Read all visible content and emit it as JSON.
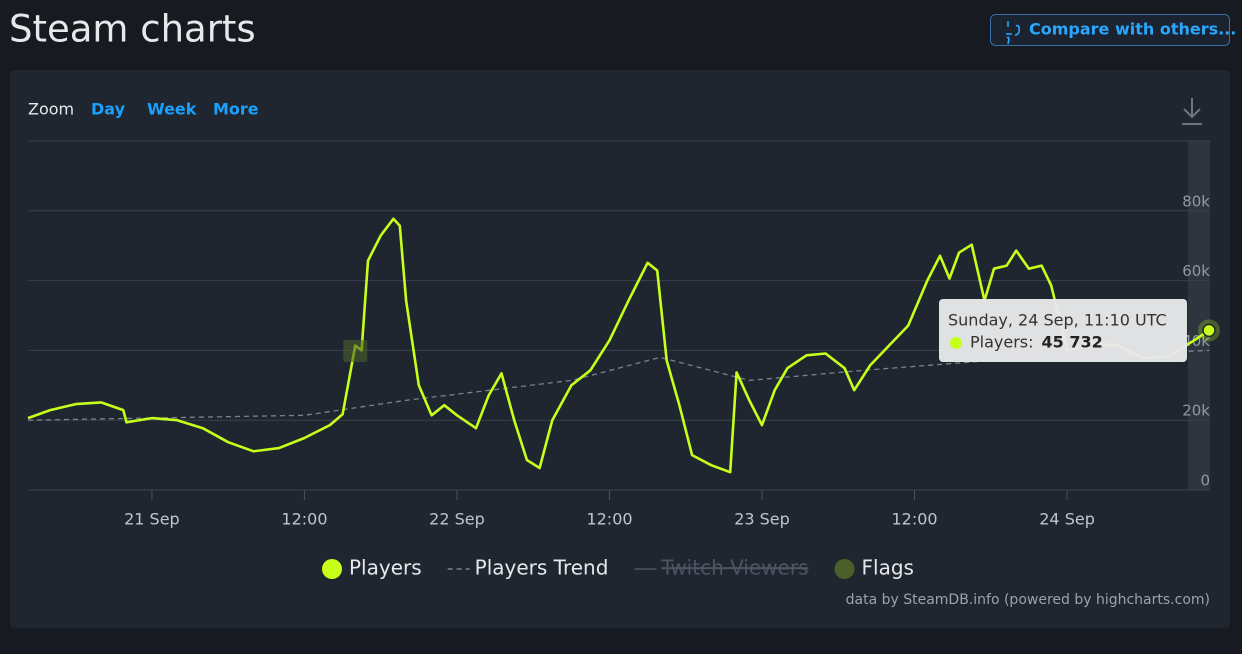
{
  "header": {
    "title": "Steam charts",
    "compare_button": "Compare with others..."
  },
  "zoom": {
    "label": "Zoom",
    "options": [
      "Day",
      "Week",
      "More"
    ]
  },
  "chart_data": {
    "type": "line",
    "xlim": [
      "20 Sep 14:15",
      "24 Sep 11:10"
    ],
    "xticks": [
      {
        "value": "21 Sep 00:00",
        "label": "21 Sep"
      },
      {
        "value": "21 Sep 12:00",
        "label": "12:00"
      },
      {
        "value": "22 Sep 00:00",
        "label": "22 Sep"
      },
      {
        "value": "22 Sep 12:00",
        "label": "12:00"
      },
      {
        "value": "23 Sep 00:00",
        "label": "23 Sep"
      },
      {
        "value": "23 Sep 12:00",
        "label": "12:00"
      },
      {
        "value": "24 Sep 00:00",
        "label": "24 Sep"
      }
    ],
    "ylim": [
      0,
      100000
    ],
    "yticks": [
      0,
      {
        "value": 20000,
        "label": "20k"
      },
      {
        "value": 40000,
        "label": "40k"
      },
      {
        "value": 60000,
        "label": "60k"
      },
      {
        "value": 80000,
        "label": "80k"
      }
    ],
    "grid": true,
    "series": [
      {
        "name": "Players",
        "color": "#c6ff1a",
        "dashed": false,
        "visible": true,
        "x": [
          "20 Sep 14:15",
          "20 Sep 16:00",
          "20 Sep 18:00",
          "20 Sep 20:00",
          "20 Sep 21:45",
          "20 Sep 22:00",
          "21 Sep 00:00",
          "21 Sep 02:00",
          "21 Sep 04:00",
          "21 Sep 06:00",
          "21 Sep 08:00",
          "21 Sep 10:00",
          "21 Sep 12:00",
          "21 Sep 14:00",
          "21 Sep 15:00",
          "21 Sep 16:00",
          "21 Sep 16:30",
          "21 Sep 17:00",
          "21 Sep 18:00",
          "21 Sep 19:00",
          "21 Sep 19:30",
          "21 Sep 20:00",
          "21 Sep 21:00",
          "21 Sep 22:00",
          "21 Sep 23:00",
          "22 Sep 00:00",
          "22 Sep 01:30",
          "22 Sep 02:30",
          "22 Sep 03:30",
          "22 Sep 04:30",
          "22 Sep 05:30",
          "22 Sep 06:30",
          "22 Sep 07:30",
          "22 Sep 09:00",
          "22 Sep 10:30",
          "22 Sep 12:00",
          "22 Sep 13:30",
          "22 Sep 15:00",
          "22 Sep 15:45",
          "22 Sep 16:30",
          "22 Sep 17:30",
          "22 Sep 18:30",
          "22 Sep 20:00",
          "22 Sep 21:30",
          "22 Sep 22:00",
          "22 Sep 23:00",
          "23 Sep 00:00",
          "23 Sep 01:00",
          "23 Sep 02:00",
          "23 Sep 03:30",
          "23 Sep 05:00",
          "23 Sep 06:30",
          "23 Sep 07:15",
          "23 Sep 08:30",
          "23 Sep 10:00",
          "23 Sep 11:30",
          "23 Sep 13:00",
          "23 Sep 14:00",
          "23 Sep 14:45",
          "23 Sep 15:30",
          "23 Sep 16:30",
          "23 Sep 17:30",
          "23 Sep 18:15",
          "23 Sep 19:15",
          "23 Sep 20:00",
          "23 Sep 21:00",
          "23 Sep 22:00",
          "23 Sep 22:45",
          "24 Sep 00:00",
          "24 Sep 02:00",
          "24 Sep 04:00",
          "24 Sep 06:00",
          "24 Sep 08:00",
          "24 Sep 10:00",
          "24 Sep 11:10"
        ],
        "values": [
          20600,
          22900,
          24600,
          25100,
          22900,
          19400,
          20600,
          20000,
          17700,
          13700,
          11100,
          12000,
          14900,
          18600,
          21700,
          41400,
          40000,
          65700,
          72900,
          77700,
          75700,
          54300,
          30000,
          21400,
          24300,
          21400,
          17700,
          27100,
          33400,
          20000,
          8600,
          6300,
          20000,
          30000,
          34300,
          42900,
          54300,
          65100,
          62900,
          37100,
          24300,
          10000,
          7100,
          5100,
          33700,
          25700,
          18600,
          28600,
          34900,
          38600,
          39100,
          34900,
          28600,
          35700,
          41400,
          47100,
          60000,
          67100,
          60600,
          68000,
          70300,
          54300,
          63400,
          64300,
          68600,
          63400,
          64300,
          58600,
          40000,
          42000,
          41400,
          37700,
          38300,
          42900,
          45732
        ]
      },
      {
        "name": "Players Trend",
        "color": "#7a828c",
        "dashed": true,
        "visible": true,
        "x": [
          "20 Sep 14:15",
          "21 Sep 12:00",
          "21 Sep 20:00",
          "22 Sep 09:00",
          "22 Sep 16:00",
          "22 Sep 23:00",
          "23 Sep 08:00",
          "23 Sep 18:00",
          "24 Sep 11:10"
        ],
        "values": [
          20000,
          21400,
          25700,
          31400,
          38000,
          31400,
          34300,
          37100,
          40000
        ]
      },
      {
        "name": "Twitch Viewers",
        "color": "#4b5563",
        "dashed": false,
        "visible": false,
        "x": [],
        "values": []
      }
    ],
    "flags": {
      "name": "Flags",
      "color": "#4a5f2a",
      "x": [
        "21 Sep 16:00"
      ]
    },
    "tooltip": {
      "header": "Sunday, 24 Sep, 11:10 UTC",
      "label": "Players:",
      "value": 45732,
      "value_label": "45 732"
    },
    "credits": "data by SteamDB.info (powered by highcharts.com)"
  }
}
